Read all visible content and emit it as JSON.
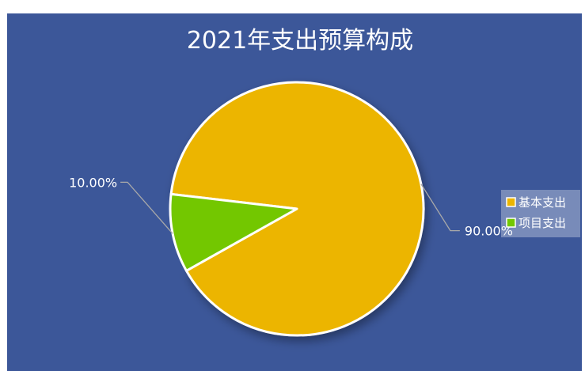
{
  "chart_data": {
    "type": "pie",
    "title": "2021年支出预算构成",
    "categories": [
      "基本支出",
      "项目支出"
    ],
    "values": [
      90.0,
      10.0
    ],
    "data_labels": [
      "90.00%",
      "10.00%"
    ],
    "colors": [
      "#ECB500",
      "#73C700"
    ],
    "background_color": "#3C5799",
    "legend": {
      "position": "right",
      "items": [
        "基本支出",
        "项目支出"
      ]
    }
  }
}
